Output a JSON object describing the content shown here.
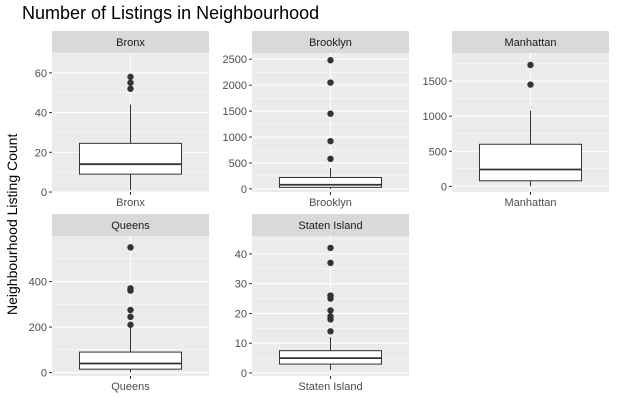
{
  "chart_data": {
    "type": "box",
    "title": "Number of Listings in Neighbourhood",
    "xlabel": "",
    "ylabel": "Neighbourhood Listing Count",
    "grid": true,
    "facets": [
      {
        "strip": "Bronx",
        "category": "Bronx",
        "ylim": [
          0,
          70
        ],
        "yticks": [
          0,
          20,
          40,
          60
        ],
        "box": {
          "q1": 9,
          "median": 14,
          "q3": 24.5,
          "whisker_low": 1,
          "whisker_high": 44
        },
        "outliers": [
          52,
          55,
          58
        ]
      },
      {
        "strip": "Brooklyn",
        "category": "Brooklyn",
        "ylim": [
          -60,
          2620
        ],
        "yticks": [
          0,
          500,
          1000,
          1500,
          2000,
          2500
        ],
        "box": {
          "q1": 30,
          "median": 80,
          "q3": 220,
          "whisker_low": 1,
          "whisker_high": 400
        },
        "outliers": [
          580,
          920,
          1450,
          2050,
          2480
        ]
      },
      {
        "strip": "Manhattan",
        "category": "Manhattan",
        "ylim": [
          -80,
          1900
        ],
        "yticks": [
          0,
          500,
          1000,
          1500
        ],
        "box": {
          "q1": 80,
          "median": 240,
          "q3": 600,
          "whisker_low": 1,
          "whisker_high": 1080
        },
        "outliers": [
          1450,
          1730
        ]
      },
      {
        "strip": "Queens",
        "category": "Queens",
        "ylim": [
          -15,
          600
        ],
        "yticks": [
          0,
          200,
          400
        ],
        "box": {
          "q1": 15,
          "median": 40,
          "q3": 90,
          "whisker_low": 1,
          "whisker_high": 200
        },
        "outliers": [
          210,
          245,
          275,
          360,
          370,
          550
        ]
      },
      {
        "strip": "Staten Island",
        "category": "Staten Island",
        "ylim": [
          -1,
          46
        ],
        "yticks": [
          0,
          10,
          20,
          30,
          40
        ],
        "box": {
          "q1": 3,
          "median": 5,
          "q3": 7.5,
          "whisker_low": 1,
          "whisker_high": 12
        },
        "outliers": [
          14,
          18,
          19,
          21,
          25,
          26,
          37,
          42
        ]
      }
    ]
  }
}
